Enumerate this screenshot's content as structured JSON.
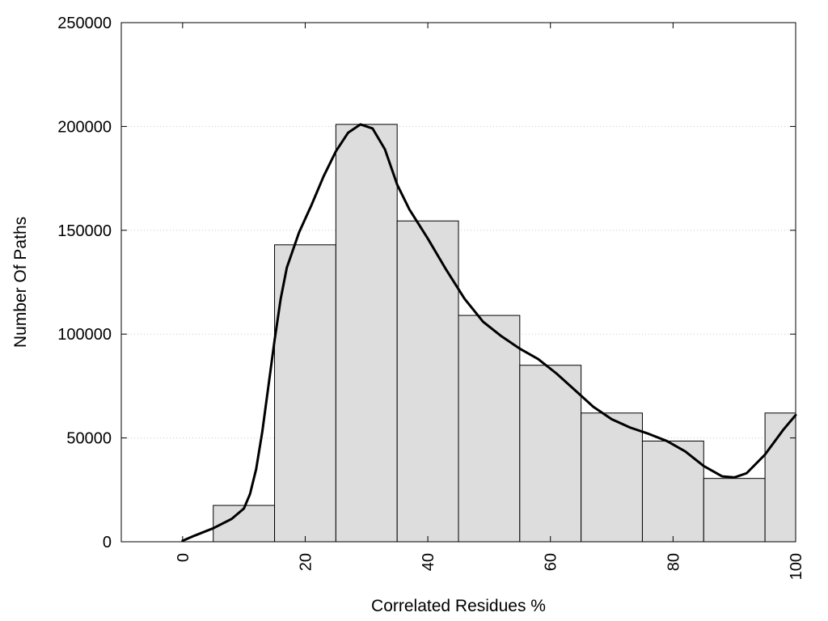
{
  "chart_data": {
    "type": "bar",
    "title": "",
    "xlabel": "Correlated Residues %",
    "ylabel": "Number Of Paths",
    "xlim": [
      -10,
      100
    ],
    "ylim": [
      0,
      250000
    ],
    "x_ticks": [
      0,
      20,
      40,
      60,
      80,
      100
    ],
    "x_tick_labels": [
      "0",
      "20",
      "40",
      "60",
      "80",
      "100"
    ],
    "y_ticks": [
      0,
      50000,
      100000,
      150000,
      200000,
      250000
    ],
    "y_tick_labels": [
      "0",
      "50000",
      "100000",
      "150000",
      "200000",
      "250000"
    ],
    "grid": "horizontal dotted",
    "bar_width": 10,
    "bar_color": "#dddddd",
    "bars": [
      {
        "x": 0,
        "value": 0
      },
      {
        "x": 10,
        "value": 17500
      },
      {
        "x": 20,
        "value": 143000
      },
      {
        "x": 30,
        "value": 201000
      },
      {
        "x": 40,
        "value": 154500
      },
      {
        "x": 50,
        "value": 109000
      },
      {
        "x": 60,
        "value": 85000
      },
      {
        "x": 70,
        "value": 62000
      },
      {
        "x": 80,
        "value": 48500
      },
      {
        "x": 90,
        "value": 30500
      },
      {
        "x": 100,
        "value": 62000
      }
    ],
    "curve": {
      "type": "line",
      "color": "#000000",
      "points": [
        [
          0,
          500
        ],
        [
          2,
          3000
        ],
        [
          5,
          6500
        ],
        [
          8,
          11000
        ],
        [
          10,
          16000
        ],
        [
          11,
          23000
        ],
        [
          12,
          35000
        ],
        [
          13,
          53000
        ],
        [
          14,
          75000
        ],
        [
          15,
          97000
        ],
        [
          16,
          117000
        ],
        [
          17,
          132000
        ],
        [
          19,
          149000
        ],
        [
          21,
          162000
        ],
        [
          23,
          176000
        ],
        [
          25,
          188000
        ],
        [
          27,
          197000
        ],
        [
          29,
          201000
        ],
        [
          31,
          199000
        ],
        [
          33,
          189000
        ],
        [
          35,
          172000
        ],
        [
          37,
          160000
        ],
        [
          40,
          146000
        ],
        [
          43,
          131000
        ],
        [
          46,
          117000
        ],
        [
          49,
          106000
        ],
        [
          52,
          99000
        ],
        [
          55,
          93000
        ],
        [
          58,
          88000
        ],
        [
          61,
          81000
        ],
        [
          64,
          73000
        ],
        [
          67,
          65000
        ],
        [
          70,
          59000
        ],
        [
          73,
          55000
        ],
        [
          76,
          52000
        ],
        [
          79,
          48500
        ],
        [
          82,
          43500
        ],
        [
          85,
          36500
        ],
        [
          88,
          31500
        ],
        [
          90,
          31000
        ],
        [
          92,
          33000
        ],
        [
          95,
          42000
        ],
        [
          98,
          54000
        ],
        [
          100,
          61000
        ]
      ]
    }
  }
}
